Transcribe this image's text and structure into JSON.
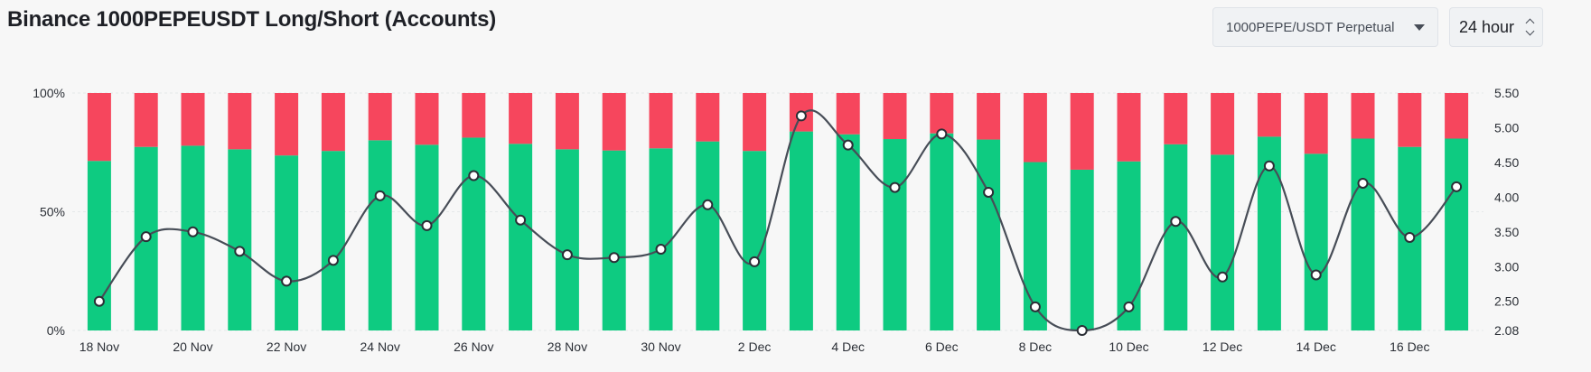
{
  "header": {
    "title": "Binance 1000PEPEUSDT Long/Short (Accounts)",
    "symbol_select": "1000PEPE/USDT Perpetual",
    "period_select": "24 hour"
  },
  "icons": {
    "symbol_dropdown": "caret-down-icon",
    "period_dropdown": "up-down-chevron-icon"
  },
  "colors": {
    "long": "#0ecb81",
    "short": "#f6465d",
    "ratio_line": "#474d57",
    "grid": "#e6e8ea"
  },
  "chart_data": {
    "type": "bar",
    "stacked": true,
    "title": "Binance 1000PEPEUSDT Long/Short (Accounts)",
    "categories": [
      "18 Nov",
      "19 Nov",
      "20 Nov",
      "21 Nov",
      "22 Nov",
      "23 Nov",
      "24 Nov",
      "25 Nov",
      "26 Nov",
      "27 Nov",
      "28 Nov",
      "29 Nov",
      "30 Nov",
      "1 Dec",
      "2 Dec",
      "3 Dec",
      "4 Dec",
      "5 Dec",
      "6 Dec",
      "7 Dec",
      "8 Dec",
      "9 Dec",
      "10 Dec",
      "11 Dec",
      "12 Dec",
      "13 Dec",
      "14 Dec",
      "15 Dec",
      "16 Dec",
      "17 Dec"
    ],
    "x_tick_labels": [
      "18 Nov",
      "20 Nov",
      "22 Nov",
      "24 Nov",
      "26 Nov",
      "28 Nov",
      "30 Nov",
      "2 Dec",
      "4 Dec",
      "6 Dec",
      "8 Dec",
      "10 Dec",
      "12 Dec",
      "14 Dec",
      "16 Dec"
    ],
    "series": [
      {
        "type": "bar",
        "axis": "left",
        "color": "#0ecb81",
        "values": [
          71.4,
          77.3,
          77.8,
          76.3,
          73.7,
          75.6,
          80.1,
          78.2,
          81.2,
          78.6,
          76.3,
          75.8,
          76.7,
          79.6,
          75.6,
          83.8,
          82.6,
          80.6,
          83.0,
          80.4,
          70.9,
          67.7,
          71.2,
          78.4,
          74.0,
          81.6,
          74.4,
          80.8,
          77.3,
          80.8
        ]
      },
      {
        "type": "bar",
        "axis": "left",
        "color": "#f6465d",
        "values": [
          28.6,
          22.7,
          22.2,
          23.7,
          26.3,
          24.4,
          19.9,
          21.8,
          18.8,
          21.4,
          23.7,
          24.2,
          23.3,
          20.4,
          24.4,
          16.2,
          17.4,
          19.4,
          17.0,
          19.6,
          29.1,
          32.3,
          28.8,
          21.6,
          26.0,
          18.4,
          25.6,
          19.2,
          22.7,
          19.2
        ]
      },
      {
        "type": "line",
        "axis": "right",
        "color": "#474d57",
        "values": [
          2.5,
          3.43,
          3.5,
          3.22,
          2.79,
          3.09,
          4.02,
          3.59,
          4.31,
          3.67,
          3.17,
          3.13,
          3.25,
          3.89,
          3.07,
          5.17,
          4.75,
          4.14,
          4.91,
          4.07,
          2.42,
          2.08,
          2.42,
          3.65,
          2.85,
          4.45,
          2.88,
          4.2,
          3.42,
          4.15
        ]
      }
    ],
    "y_left": {
      "ticks": [
        "0%",
        "50%",
        "100%"
      ],
      "range": [
        0,
        100
      ]
    },
    "y_right": {
      "ticks": [
        "2.08",
        "2.50",
        "3.00",
        "3.50",
        "4.00",
        "4.50",
        "5.00",
        "5.50"
      ],
      "range": [
        2.08,
        5.5
      ]
    },
    "legend": "none",
    "grid": true
  }
}
